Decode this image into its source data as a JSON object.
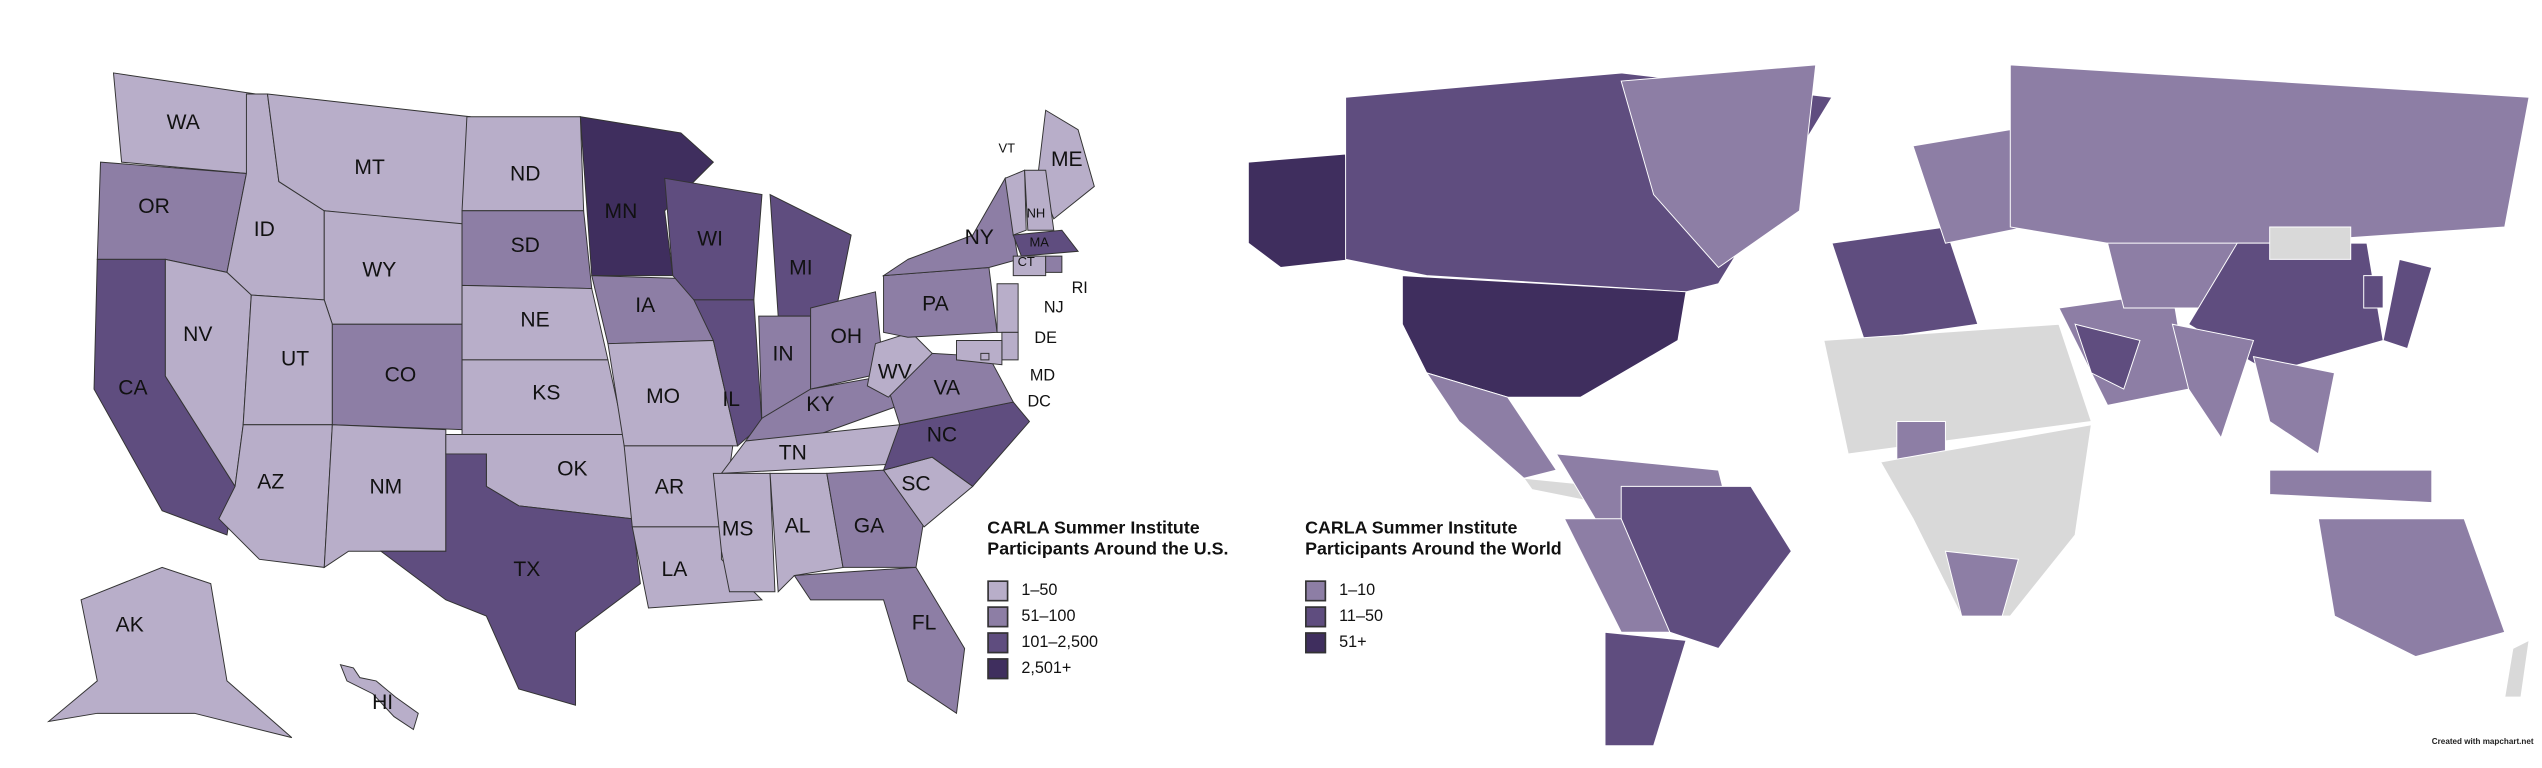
{
  "us_map": {
    "title": "CARLA Summer Institute Participants Around the U.S.",
    "legend": [
      {
        "label": "1–50",
        "color": "#b8aec9"
      },
      {
        "label": "51–100",
        "color": "#8d7ea5"
      },
      {
        "label": "101–2,500",
        "color": "#5f4d7f"
      },
      {
        "label": "2,501+",
        "color": "#3f2e5e"
      }
    ],
    "states": [
      {
        "label": "WA",
        "bin": 0
      },
      {
        "label": "OR",
        "bin": 1
      },
      {
        "label": "CA",
        "bin": 2
      },
      {
        "label": "ID",
        "bin": 0
      },
      {
        "label": "NV",
        "bin": 0
      },
      {
        "label": "MT",
        "bin": 0
      },
      {
        "label": "WY",
        "bin": 0
      },
      {
        "label": "UT",
        "bin": 0
      },
      {
        "label": "AZ",
        "bin": 0
      },
      {
        "label": "CO",
        "bin": 1
      },
      {
        "label": "NM",
        "bin": 0
      },
      {
        "label": "ND",
        "bin": 0
      },
      {
        "label": "SD",
        "bin": 1
      },
      {
        "label": "NE",
        "bin": 0
      },
      {
        "label": "KS",
        "bin": 0
      },
      {
        "label": "OK",
        "bin": 0
      },
      {
        "label": "TX",
        "bin": 2
      },
      {
        "label": "MN",
        "bin": 3
      },
      {
        "label": "IA",
        "bin": 1
      },
      {
        "label": "MO",
        "bin": 0
      },
      {
        "label": "AR",
        "bin": 0
      },
      {
        "label": "LA",
        "bin": 0
      },
      {
        "label": "WI",
        "bin": 2
      },
      {
        "label": "IL",
        "bin": 2
      },
      {
        "label": "MI",
        "bin": 2
      },
      {
        "label": "IN",
        "bin": 1
      },
      {
        "label": "OH",
        "bin": 1
      },
      {
        "label": "KY",
        "bin": 1
      },
      {
        "label": "TN",
        "bin": 0
      },
      {
        "label": "MS",
        "bin": 0
      },
      {
        "label": "AL",
        "bin": 0
      },
      {
        "label": "GA",
        "bin": 1
      },
      {
        "label": "FL",
        "bin": 1
      },
      {
        "label": "SC",
        "bin": 0
      },
      {
        "label": "NC",
        "bin": 2
      },
      {
        "label": "VA",
        "bin": 1
      },
      {
        "label": "WV",
        "bin": 0
      },
      {
        "label": "PA",
        "bin": 1
      },
      {
        "label": "NY",
        "bin": 1
      },
      {
        "label": "ME",
        "bin": 0
      },
      {
        "label": "VT",
        "bin": 0
      },
      {
        "label": "NH",
        "bin": 0
      },
      {
        "label": "MA",
        "bin": 2
      },
      {
        "label": "CT",
        "bin": 0
      },
      {
        "label": "RI",
        "bin": 1
      },
      {
        "label": "NJ",
        "bin": 0
      },
      {
        "label": "DE",
        "bin": 0
      },
      {
        "label": "MD",
        "bin": 0
      },
      {
        "label": "DC",
        "bin": 0
      },
      {
        "label": "AK",
        "bin": 0
      },
      {
        "label": "HI",
        "bin": 0
      }
    ]
  },
  "world_map": {
    "title": "CARLA Summer Institute Participants Around the World",
    "legend": [
      {
        "label": "1–10",
        "color": "#8d7ea5"
      },
      {
        "label": "11–50",
        "color": "#5f4d7f"
      },
      {
        "label": "51+",
        "color": "#3f2e5e"
      }
    ],
    "no_data_color": "#d9d9d9",
    "region_bins": [
      2,
      1,
      0,
      2,
      0,
      null,
      0,
      1,
      0,
      1,
      1,
      0,
      0,
      null,
      0,
      null,
      0,
      0,
      1,
      0,
      1,
      null,
      0,
      0,
      1,
      1,
      0,
      0,
      null
    ]
  },
  "credit": "Created with mapchart.net"
}
